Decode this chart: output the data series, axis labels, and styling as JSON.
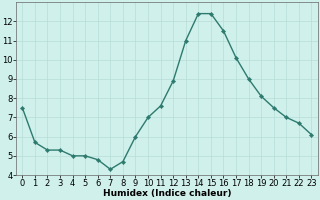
{
  "x": [
    0,
    1,
    2,
    3,
    4,
    5,
    6,
    7,
    8,
    9,
    10,
    11,
    12,
    13,
    14,
    15,
    16,
    17,
    18,
    19,
    20,
    21,
    22,
    23
  ],
  "y": [
    7.5,
    5.7,
    5.3,
    5.3,
    5.0,
    5.0,
    4.8,
    4.3,
    4.7,
    6.0,
    7.0,
    7.6,
    8.9,
    11.0,
    12.4,
    12.4,
    11.5,
    10.1,
    9.0,
    8.1,
    7.5,
    7.0,
    6.7,
    6.1
  ],
  "line_color": "#2d7a6e",
  "marker": "D",
  "marker_size": 2.2,
  "line_width": 1.0,
  "bg_color": "#cff0eb",
  "grid_color": "#b8ddd7",
  "xlabel": "Humidex (Indice chaleur)",
  "ylim": [
    4,
    13
  ],
  "xlim": [
    -0.5,
    23.5
  ],
  "yticks": [
    4,
    5,
    6,
    7,
    8,
    9,
    10,
    11,
    12
  ],
  "xticks": [
    0,
    1,
    2,
    3,
    4,
    5,
    6,
    7,
    8,
    9,
    10,
    11,
    12,
    13,
    14,
    15,
    16,
    17,
    18,
    19,
    20,
    21,
    22,
    23
  ],
  "xlabel_fontsize": 6.5,
  "tick_fontsize": 6.0
}
